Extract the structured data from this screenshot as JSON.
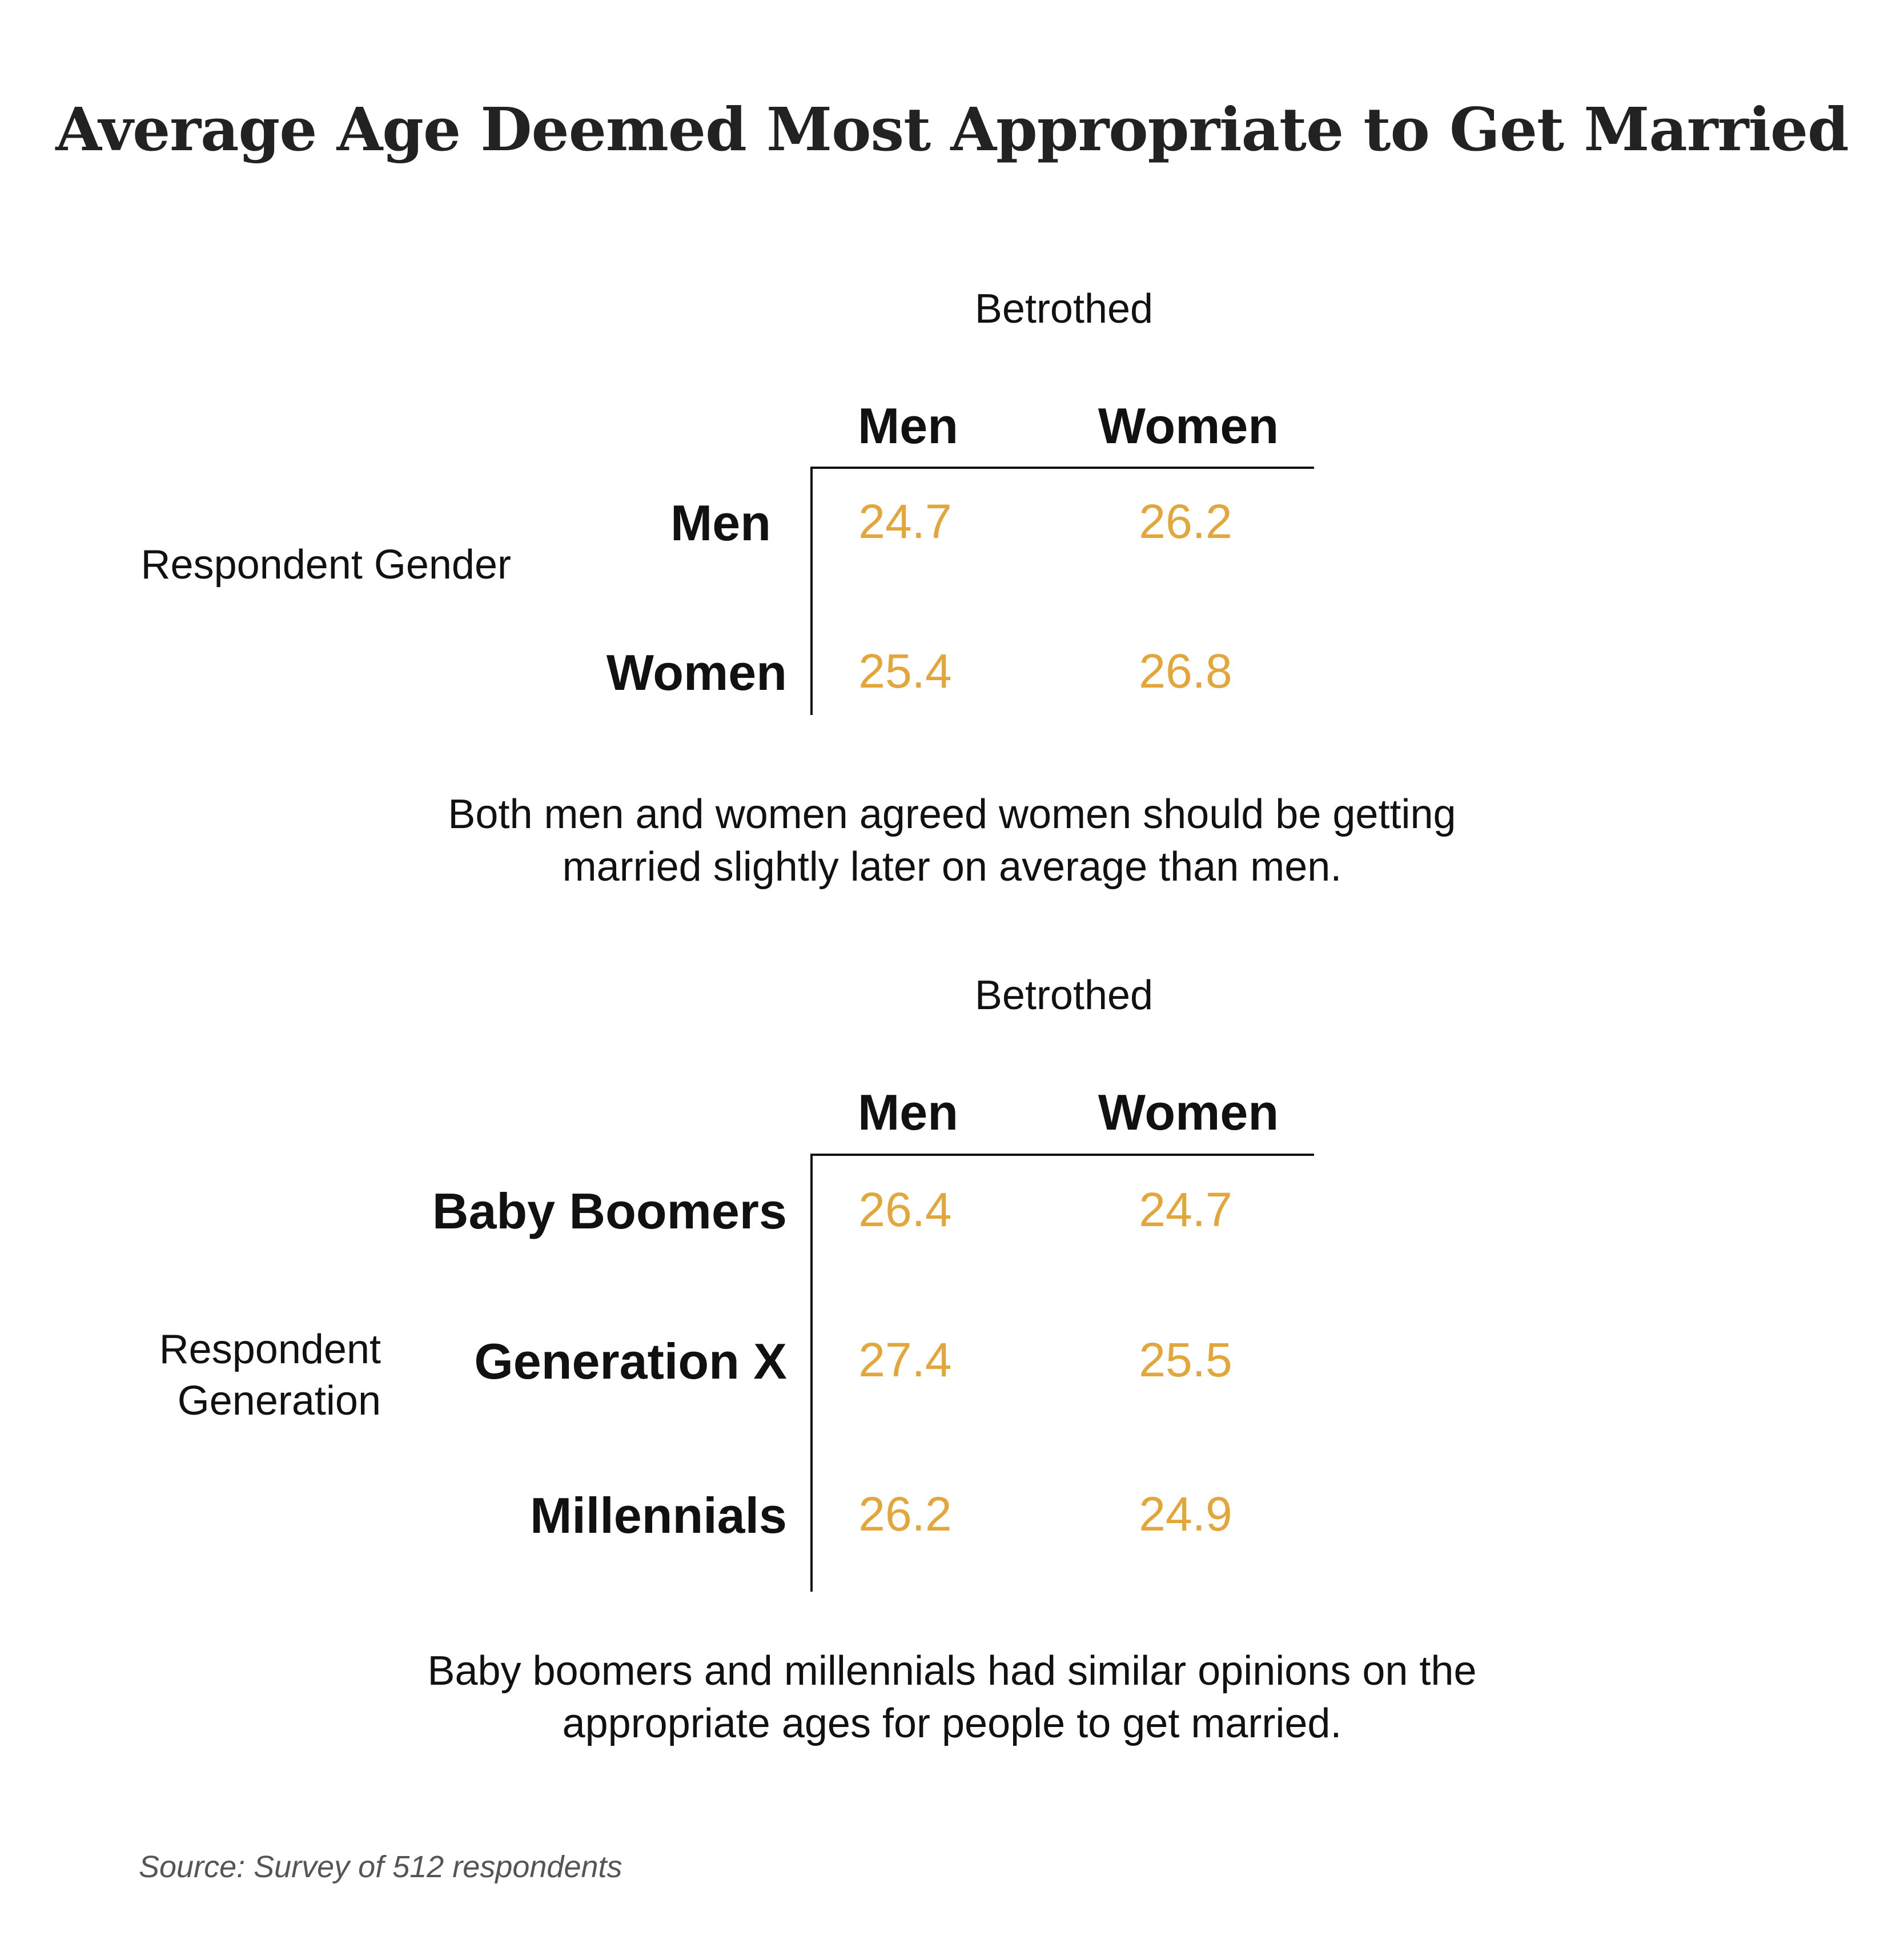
{
  "title": "Average Age Deemed Most Appropriate to Get Married",
  "chart_data": [
    {
      "type": "table",
      "column_group": "Betrothed",
      "columns": [
        "Men",
        "Women"
      ],
      "row_group": "Respondent Gender",
      "rows": [
        {
          "label": "Men",
          "values": [
            "24.7",
            "26.2"
          ]
        },
        {
          "label": "Women",
          "values": [
            "25.4",
            "26.8"
          ]
        }
      ],
      "caption": "Both men and women agreed women should be getting married slightly later on average than men."
    },
    {
      "type": "table",
      "column_group": "Betrothed",
      "columns": [
        "Men",
        "Women"
      ],
      "row_group": "Respondent Generation",
      "rows": [
        {
          "label": "Baby Boomers",
          "values": [
            "26.4",
            "24.7"
          ]
        },
        {
          "label": "Generation X",
          "values": [
            "27.4",
            "25.5"
          ]
        },
        {
          "label": "Millennials",
          "values": [
            "26.2",
            "24.9"
          ]
        }
      ],
      "caption": "Baby boomers and millennials had similar opinions on the appropriate ages for people to get married."
    }
  ],
  "source": "Source: Survey of 512 respondents",
  "colors": {
    "value": "#E2A63A",
    "text": "#111111"
  }
}
